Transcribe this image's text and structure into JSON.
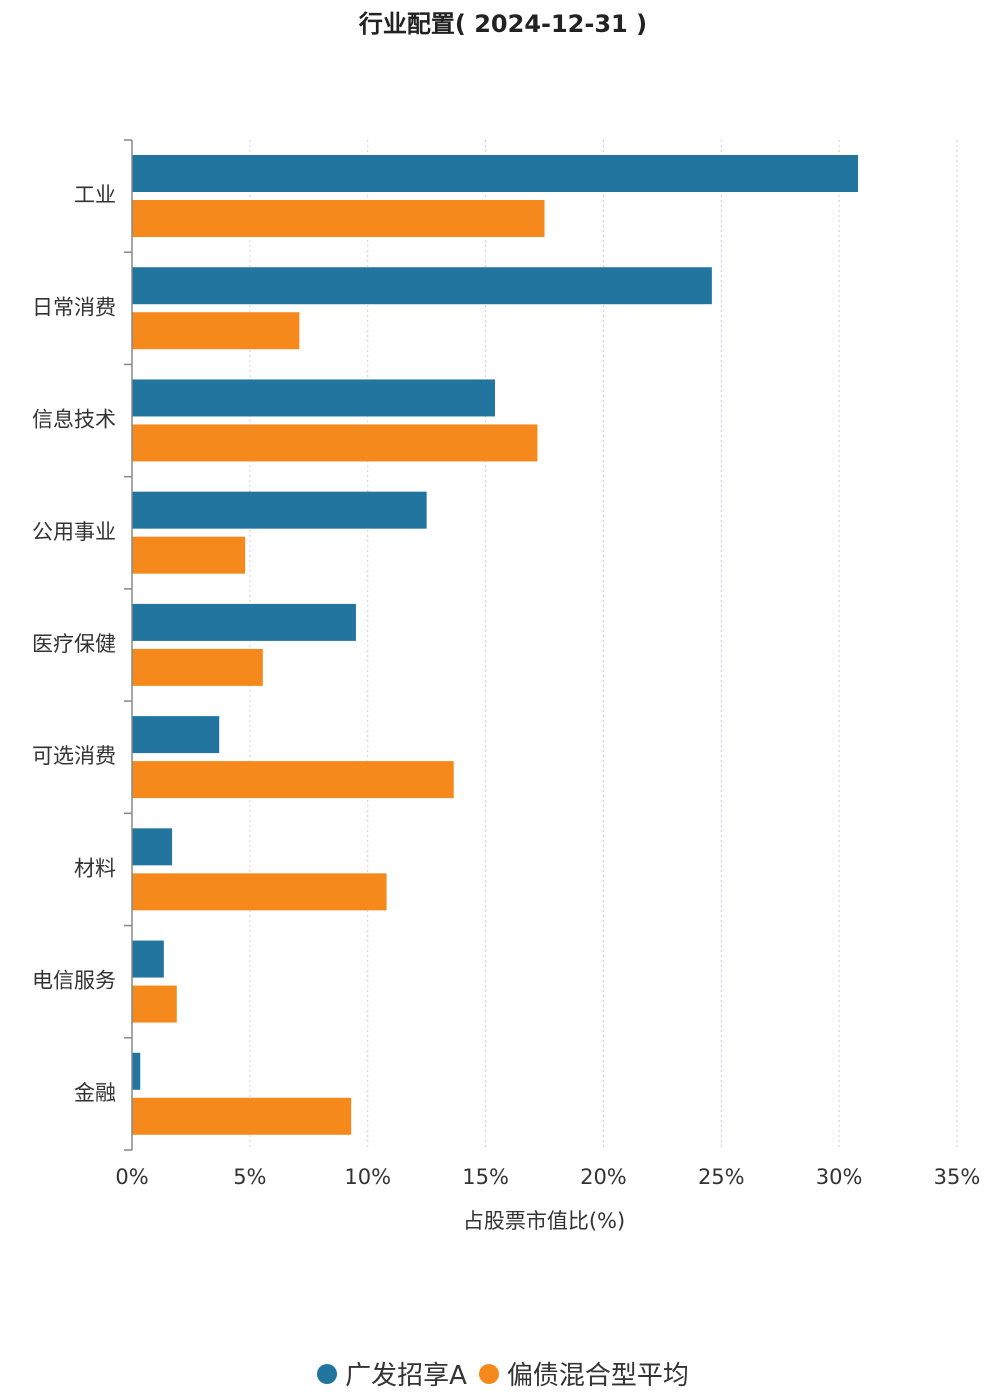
{
  "chart_data": {
    "type": "bar",
    "orientation": "horizontal",
    "title": "行业配置( 2024-12-31 )",
    "xlabel": "占股票市值比(%)",
    "ylabel": "",
    "xlim": [
      0,
      35
    ],
    "x_ticks": [
      "0%",
      "5%",
      "10%",
      "15%",
      "20%",
      "25%",
      "30%",
      "35%"
    ],
    "grid": "vertical dotted",
    "legend_position": "bottom-center",
    "categories": [
      "工业",
      "日常消费",
      "信息技术",
      "公用事业",
      "医疗保健",
      "可选消费",
      "材料",
      "电信服务",
      "金融"
    ],
    "series": [
      {
        "name": "广发招享A",
        "color": "#21759f",
        "values": [
          30.8,
          24.6,
          15.4,
          12.5,
          9.5,
          3.7,
          1.7,
          1.35,
          0.35
        ]
      },
      {
        "name": "偏债混合型平均",
        "color": "#f5891c",
        "values": [
          17.5,
          7.1,
          17.2,
          4.8,
          5.55,
          13.65,
          10.8,
          1.9,
          9.3
        ]
      }
    ]
  }
}
